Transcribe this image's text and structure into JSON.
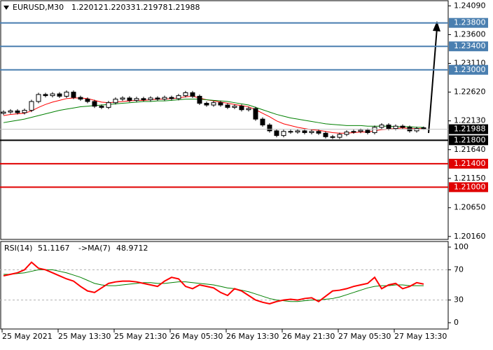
{
  "chart_data": [
    {
      "type": "candlestick",
      "symbol": "EURUSD,M30",
      "color": "#000000",
      "open": [
        1.2226,
        1.2228,
        1.223,
        1.2227,
        1.2231,
        1.2246,
        1.2258,
        1.2256,
        1.2259,
        1.2255,
        1.2262,
        1.2253,
        1.225,
        1.2246,
        1.2238,
        1.2236,
        1.2244,
        1.225,
        1.2252,
        1.2248,
        1.2251,
        1.2249,
        1.2252,
        1.225,
        1.2253,
        1.2251,
        1.2256,
        1.2261,
        1.2255,
        1.2243,
        1.224,
        1.2244,
        1.224,
        1.2236,
        1.2238,
        1.2232,
        1.2234,
        1.2216,
        1.2206,
        1.2196,
        1.2188,
        1.2195,
        1.2194,
        1.2196,
        1.2193,
        1.2195,
        1.2192,
        1.2186,
        1.2185,
        1.219,
        1.2194,
        1.2195,
        1.2197,
        1.2193,
        1.2202,
        1.2206,
        1.22,
        1.2204,
        1.2202,
        1.2196,
        1.22012
      ],
      "high": [
        1.2231,
        1.2233,
        1.2233,
        1.2234,
        1.2249,
        1.2261,
        1.2261,
        1.2262,
        1.2262,
        1.2265,
        1.2265,
        1.2256,
        1.2253,
        1.2249,
        1.2241,
        1.2247,
        1.2253,
        1.2255,
        1.2255,
        1.2254,
        1.2254,
        1.2255,
        1.2255,
        1.2256,
        1.2256,
        1.2259,
        1.2264,
        1.2264,
        1.2258,
        1.2246,
        1.2247,
        1.2247,
        1.2243,
        1.2241,
        1.2241,
        1.2237,
        1.2237,
        1.2219,
        1.2209,
        1.2199,
        1.2198,
        1.2198,
        1.2199,
        1.2199,
        1.2198,
        1.2198,
        1.2195,
        1.2189,
        1.2193,
        1.2197,
        1.2198,
        1.22,
        1.22,
        1.2205,
        1.2209,
        1.2209,
        1.2207,
        1.2207,
        1.2205,
        1.2203,
        1.22033
      ],
      "low": [
        1.2223,
        1.2225,
        1.2224,
        1.2224,
        1.2228,
        1.2243,
        1.2253,
        1.2253,
        1.2252,
        1.2252,
        1.225,
        1.2247,
        1.2243,
        1.2235,
        1.2233,
        1.2233,
        1.2241,
        1.2247,
        1.2245,
        1.2245,
        1.2246,
        1.2246,
        1.2247,
        1.2247,
        1.2248,
        1.2248,
        1.2253,
        1.2252,
        1.224,
        1.2237,
        1.2237,
        1.2237,
        1.2233,
        1.2233,
        1.2229,
        1.2229,
        1.2213,
        1.2203,
        1.2193,
        1.2185,
        1.2185,
        1.2191,
        1.2191,
        1.219,
        1.219,
        1.2189,
        1.2183,
        1.2182,
        1.2182,
        1.2187,
        1.2191,
        1.2192,
        1.219,
        1.219,
        1.2199,
        1.2197,
        1.2197,
        1.2199,
        1.2193,
        1.2193,
        1.21978
      ],
      "close": [
        1.2228,
        1.223,
        1.2227,
        1.2231,
        1.2246,
        1.2258,
        1.2256,
        1.2259,
        1.2255,
        1.2262,
        1.2253,
        1.225,
        1.2246,
        1.2238,
        1.2236,
        1.2244,
        1.225,
        1.2252,
        1.2248,
        1.2251,
        1.2249,
        1.2252,
        1.225,
        1.2253,
        1.2251,
        1.2256,
        1.2261,
        1.2255,
        1.2243,
        1.224,
        1.2244,
        1.224,
        1.2236,
        1.2238,
        1.2232,
        1.2234,
        1.2216,
        1.2206,
        1.2196,
        1.2188,
        1.2195,
        1.2194,
        1.2196,
        1.2193,
        1.2195,
        1.2192,
        1.2186,
        1.2185,
        1.219,
        1.2194,
        1.2195,
        1.2197,
        1.2193,
        1.2202,
        1.2206,
        1.22,
        1.2204,
        1.2202,
        1.2196,
        1.22,
        1.21988
      ],
      "moving_averages": [
        {
          "color": "#ff0000",
          "values": [
            1.2222,
            1.2224,
            1.2225,
            1.2226,
            1.223,
            1.2236,
            1.2241,
            1.2245,
            1.2248,
            1.2251,
            1.2252,
            1.2252,
            1.2251,
            1.2248,
            1.2245,
            1.2244,
            1.2245,
            1.2246,
            1.2247,
            1.2248,
            1.2248,
            1.2249,
            1.225,
            1.225,
            1.2251,
            1.2252,
            1.2254,
            1.2255,
            1.2252,
            1.2249,
            1.2247,
            1.2245,
            1.2243,
            1.2241,
            1.2239,
            1.2237,
            1.2232,
            1.2226,
            1.222,
            1.2213,
            1.2208,
            1.2205,
            1.2202,
            1.22,
            1.2198,
            1.2197,
            1.2195,
            1.2193,
            1.2192,
            1.2192,
            1.2193,
            1.2194,
            1.2194,
            1.2196,
            1.2198,
            1.2199,
            1.22,
            1.2201,
            1.22,
            1.22,
            1.22
          ]
        },
        {
          "color": "#008000",
          "values": [
            1.221,
            1.2212,
            1.2214,
            1.2216,
            1.2219,
            1.2222,
            1.2225,
            1.2228,
            1.2231,
            1.2233,
            1.2235,
            1.2237,
            1.2238,
            1.2239,
            1.224,
            1.2241,
            1.2242,
            1.2243,
            1.2244,
            1.2245,
            1.2246,
            1.2246,
            1.2247,
            1.2247,
            1.2248,
            1.2249,
            1.225,
            1.225,
            1.225,
            1.2249,
            1.2248,
            1.2247,
            1.2246,
            1.2244,
            1.2242,
            1.224,
            1.2236,
            1.2232,
            1.2228,
            1.2224,
            1.2221,
            1.2218,
            1.2216,
            1.2214,
            1.2212,
            1.221,
            1.2208,
            1.2207,
            1.2206,
            1.2205,
            1.2205,
            1.2205,
            1.2204,
            1.2204,
            1.2204,
            1.2204,
            1.2203,
            1.2203,
            1.2203,
            1.2202,
            1.2202
          ]
        }
      ],
      "levels": [
        {
          "value": 1.238,
          "label": "1.23800",
          "color": "#4a7fb0"
        },
        {
          "value": 1.234,
          "label": "1.23400",
          "color": "#4a7fb0"
        },
        {
          "value": 1.23,
          "label": "1.23000",
          "color": "#4a7fb0"
        },
        {
          "value": 1.218,
          "label": "1.21800",
          "color": "#000000"
        },
        {
          "value": 1.214,
          "label": "1.21400",
          "color": "#e00000"
        },
        {
          "value": 1.21,
          "label": "1.21000",
          "color": "#e00000"
        }
      ],
      "ylim": [
        1.2011,
        1.2419
      ],
      "yticks": [
        {
          "value": 1.2409,
          "label": "1.24090"
        },
        {
          "value": 1.236,
          "label": "1.23600"
        },
        {
          "value": 1.2311,
          "label": "1.23110"
        },
        {
          "value": 1.2262,
          "label": "1.22620"
        },
        {
          "value": 1.2213,
          "label": "1.22130"
        },
        {
          "value": 1.2164,
          "label": "1.21640"
        },
        {
          "value": 1.2115,
          "label": "1.21150"
        },
        {
          "value": 1.2065,
          "label": "1.20650"
        },
        {
          "value": 1.2016,
          "label": "1.20160"
        }
      ]
    },
    {
      "type": "line",
      "title": "RSI(14)",
      "ma_title": "->MA(7)",
      "categories": [
        "25 May 2021",
        null,
        null,
        null,
        null,
        null,
        null,
        null,
        "25 May 13:30",
        null,
        null,
        null,
        null,
        null,
        null,
        null,
        "25 May 21:30",
        null,
        null,
        null,
        null,
        null,
        null,
        null,
        "26 May 05:30",
        null,
        null,
        null,
        null,
        null,
        null,
        null,
        "26 May 13:30",
        null,
        null,
        null,
        null,
        null,
        null,
        null,
        "26 May 21:30",
        null,
        null,
        null,
        null,
        null,
        null,
        null,
        "27 May 05:30",
        null,
        null,
        null,
        null,
        null,
        null,
        null,
        "27 May 13:30",
        null,
        null,
        null,
        null
      ],
      "series": [
        {
          "color": "#ff0000",
          "values": [
            62,
            64,
            66,
            70,
            80,
            72,
            70,
            66,
            62,
            58,
            55,
            48,
            42,
            40,
            46,
            52,
            54,
            55,
            55,
            54,
            52,
            50,
            48,
            55,
            60,
            58,
            48,
            45,
            50,
            48,
            46,
            40,
            36,
            45,
            42,
            36,
            30,
            27,
            25,
            28,
            30,
            31,
            30,
            32,
            33,
            28,
            35,
            42,
            43,
            45,
            48,
            50,
            52,
            60,
            45,
            50,
            52,
            45,
            48,
            53,
            51.1167
          ]
        },
        {
          "color": "#008000",
          "values": [
            64,
            64,
            65,
            66,
            68,
            70,
            70,
            70,
            68,
            66,
            63,
            60,
            56,
            52,
            50,
            49,
            49,
            50,
            51,
            52,
            53,
            53,
            52,
            52,
            53,
            54,
            54,
            53,
            52,
            51,
            50,
            48,
            46,
            45,
            43,
            41,
            38,
            35,
            32,
            30,
            29,
            28,
            28,
            29,
            30,
            30,
            31,
            32,
            34,
            37,
            40,
            43,
            46,
            48,
            49,
            49,
            50,
            50,
            49,
            49,
            48.9712
          ]
        }
      ],
      "ylim": [
        0,
        100
      ],
      "yticks": [
        0,
        30,
        70,
        100
      ]
    }
  ]
}
